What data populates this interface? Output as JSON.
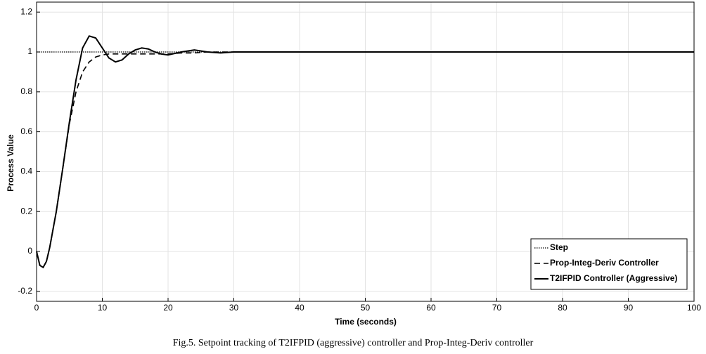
{
  "chart_data": {
    "type": "line",
    "caption": "Fig.5. Setpoint tracking of T2IFPID (aggressive) controller and Prop-Integ-Deriv controller",
    "xlabel": "Time (seconds)",
    "ylabel": "Process Value",
    "x": [
      0,
      0.5,
      1,
      1.5,
      2,
      3,
      4,
      5,
      6,
      7,
      8,
      9,
      10,
      11,
      12,
      13,
      14,
      15,
      16,
      17,
      18,
      19,
      20,
      22,
      24,
      26,
      28,
      30,
      35,
      40,
      50,
      60,
      70,
      80,
      90,
      100
    ],
    "series": [
      {
        "name": "Step",
        "color": "#000000",
        "linestyle": "dotted",
        "values": [
          1,
          1,
          1,
          1,
          1,
          1,
          1,
          1,
          1,
          1,
          1,
          1,
          1,
          1,
          1,
          1,
          1,
          1,
          1,
          1,
          1,
          1,
          1,
          1,
          1,
          1,
          1,
          1,
          1,
          1,
          1,
          1,
          1,
          1,
          1,
          1
        ]
      },
      {
        "name": "Prop-Integ-Deriv Controller",
        "color": "#000000",
        "linestyle": "dashed",
        "values": [
          0,
          -0.07,
          -0.08,
          -0.05,
          0.02,
          0.2,
          0.42,
          0.64,
          0.8,
          0.9,
          0.95,
          0.975,
          0.985,
          0.99,
          0.99,
          0.99,
          0.99,
          0.99,
          0.99,
          0.99,
          0.99,
          0.99,
          0.99,
          0.995,
          0.995,
          1,
          1,
          1,
          1,
          1,
          1,
          1,
          1,
          1,
          1,
          1
        ]
      },
      {
        "name": "T2IFPID Controller (Aggressive)",
        "color": "#000000",
        "linestyle": "solid",
        "values": [
          0,
          -0.07,
          -0.08,
          -0.05,
          0.02,
          0.2,
          0.42,
          0.65,
          0.86,
          1.02,
          1.08,
          1.07,
          1.02,
          0.97,
          0.95,
          0.96,
          0.99,
          1.01,
          1.02,
          1.015,
          1,
          0.99,
          0.985,
          1,
          1.01,
          1,
          0.995,
          1,
          1,
          1,
          1,
          1,
          1,
          1,
          1,
          1
        ]
      }
    ],
    "xlim": [
      0,
      100
    ],
    "xticks": [
      0,
      10,
      20,
      30,
      40,
      50,
      60,
      70,
      80,
      90,
      100
    ],
    "ylim": [
      -0.25,
      1.25
    ],
    "yticks": [
      -0.2,
      0,
      0.2,
      0.4,
      0.6,
      0.8,
      1,
      1.2
    ],
    "grid": true,
    "legend": "lower right"
  }
}
